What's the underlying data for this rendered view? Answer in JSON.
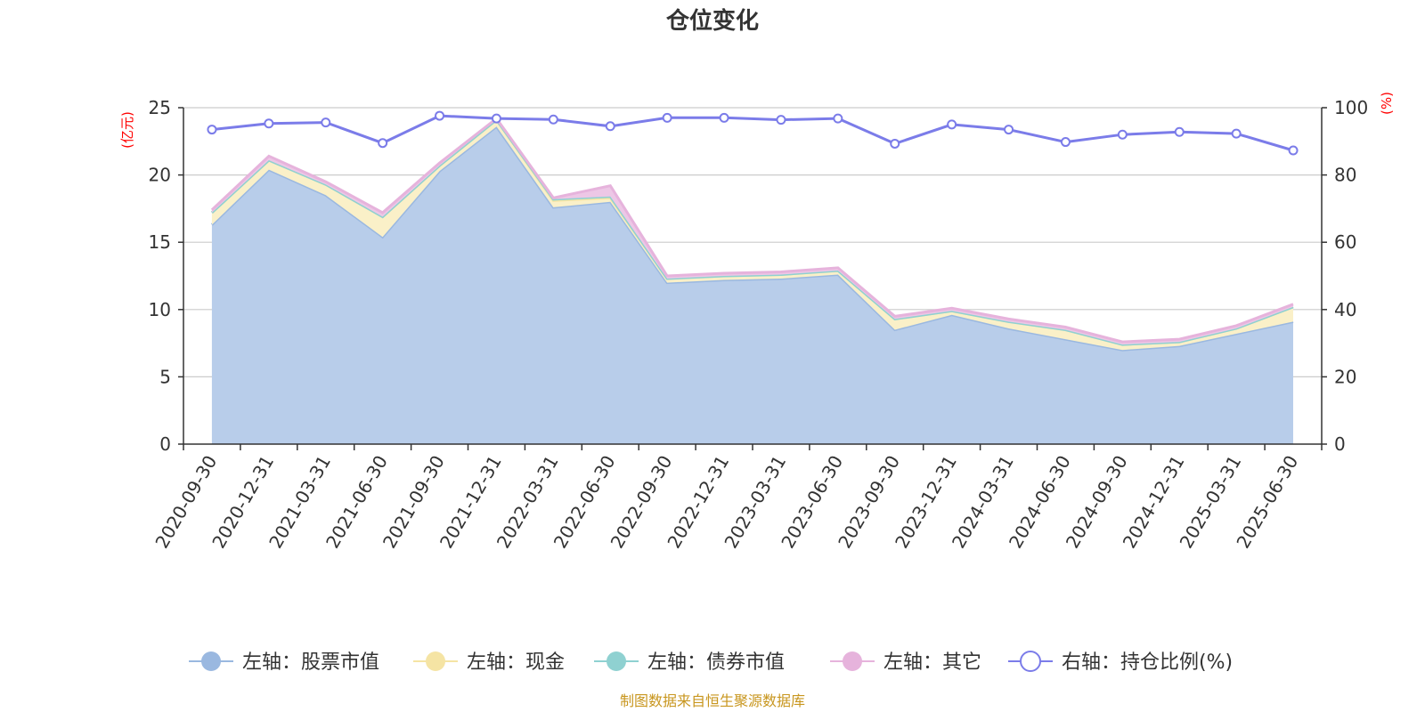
{
  "chart_data": {
    "type": "area",
    "title": "仓位变化",
    "left_axis_unit": "(亿元)",
    "right_axis_unit": "(%)",
    "categories": [
      "2020-09-30",
      "2020-12-31",
      "2021-03-31",
      "2021-06-30",
      "2021-09-30",
      "2021-12-31",
      "2022-03-31",
      "2022-06-30",
      "2022-09-30",
      "2022-12-31",
      "2023-03-31",
      "2023-06-30",
      "2023-09-30",
      "2023-12-31",
      "2024-03-31",
      "2024-06-30",
      "2024-09-30",
      "2024-12-31",
      "2025-03-31",
      "2025-06-30"
    ],
    "left_ylim": [
      0,
      25
    ],
    "left_yticks": [
      0,
      5,
      10,
      15,
      20,
      25
    ],
    "right_ylim": [
      0,
      100
    ],
    "right_yticks": [
      0,
      20,
      40,
      60,
      80,
      100
    ],
    "grid": true,
    "legend_position": "bottom",
    "series": [
      {
        "name": "左轴：股票市值",
        "axis": "left",
        "color": "#9ab8e0",
        "fill": "#b8cdea",
        "values": [
          16.3,
          20.4,
          18.5,
          15.4,
          20.3,
          23.6,
          17.6,
          18.0,
          12.0,
          12.2,
          12.3,
          12.6,
          8.5,
          9.6,
          8.6,
          7.8,
          7.0,
          7.3,
          8.2,
          9.1
        ]
      },
      {
        "name": "左轴：现金",
        "axis": "left",
        "color": "#f5e4a4",
        "fill": "#faf0c8",
        "values": [
          0.9,
          0.7,
          0.8,
          1.5,
          0.4,
          0.5,
          0.5,
          0.3,
          0.3,
          0.3,
          0.3,
          0.3,
          0.8,
          0.3,
          0.5,
          0.7,
          0.4,
          0.3,
          0.4,
          1.1
        ]
      },
      {
        "name": "左轴：债券市值",
        "axis": "left",
        "color": "#8fd1d1",
        "fill": "#b7e2e2",
        "values": [
          0.0,
          0.0,
          0.0,
          0.0,
          0.0,
          0.0,
          0.1,
          0.1,
          0.0,
          0.0,
          0.0,
          0.0,
          0.0,
          0.0,
          0.0,
          0.0,
          0.0,
          0.0,
          0.0,
          0.0
        ]
      },
      {
        "name": "左轴：其它",
        "axis": "left",
        "color": "#e6b3dc",
        "fill": "#edc7e6",
        "values": [
          0.2,
          0.3,
          0.2,
          0.3,
          0.2,
          0.1,
          0.1,
          0.8,
          0.2,
          0.2,
          0.2,
          0.2,
          0.2,
          0.2,
          0.2,
          0.2,
          0.2,
          0.2,
          0.2,
          0.2
        ]
      },
      {
        "name": "右轴：持仓比例(%)",
        "axis": "right",
        "color": "#7b7ce9",
        "values": [
          93.5,
          95.3,
          95.6,
          89.5,
          97.6,
          96.8,
          96.5,
          94.5,
          97.0,
          97.0,
          96.4,
          96.8,
          89.3,
          95.0,
          93.5,
          89.8,
          92.0,
          92.8,
          92.3,
          87.3
        ]
      }
    ]
  },
  "footer": {
    "source": "制图数据来自恒生聚源数据库"
  }
}
